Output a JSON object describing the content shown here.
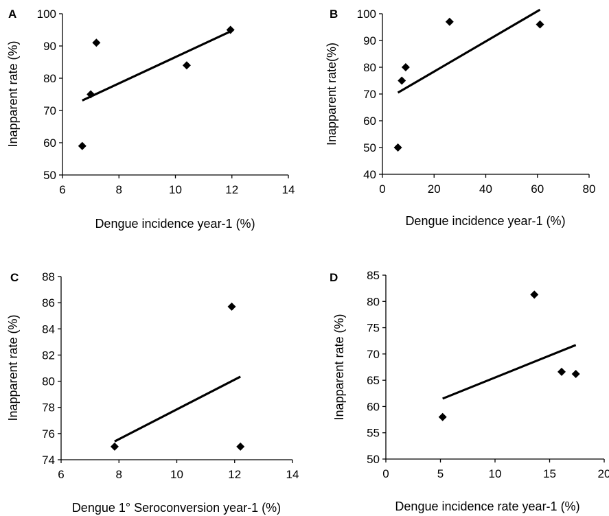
{
  "chart_data": [
    {
      "panel": "A",
      "type": "scatter",
      "xlabel": "Dengue incidence year-1 (%)",
      "ylabel": "Inapparent rate (%)",
      "xlim": [
        6,
        14
      ],
      "ylim": [
        50,
        100
      ],
      "xticks": [
        "6",
        "8",
        "10",
        "12",
        "14"
      ],
      "yticks": [
        "50",
        "60",
        "70",
        "80",
        "90",
        "100"
      ],
      "points": [
        {
          "x": 6.7,
          "y": 59
        },
        {
          "x": 7.0,
          "y": 75
        },
        {
          "x": 7.2,
          "y": 91
        },
        {
          "x": 10.4,
          "y": 84
        },
        {
          "x": 11.95,
          "y": 95
        }
      ],
      "trendline": {
        "x": [
          6.7,
          11.95
        ],
        "y": [
          73.1,
          94.5
        ]
      }
    },
    {
      "panel": "B",
      "type": "scatter",
      "xlabel": "Dengue incidence year-1 (%)",
      "ylabel": "Inapparent rate(%)",
      "xlim": [
        0,
        80
      ],
      "ylim": [
        40,
        100
      ],
      "xticks": [
        "0",
        "20",
        "40",
        "60",
        "80"
      ],
      "yticks": [
        "40",
        "50",
        "60",
        "70",
        "80",
        "90",
        "100"
      ],
      "points": [
        {
          "x": 6,
          "y": 50
        },
        {
          "x": 7.5,
          "y": 75
        },
        {
          "x": 9,
          "y": 80
        },
        {
          "x": 26,
          "y": 97
        },
        {
          "x": 61,
          "y": 96
        }
      ],
      "trendline": {
        "x": [
          6,
          61
        ],
        "y": [
          70.5,
          101.5
        ]
      }
    },
    {
      "panel": "C",
      "type": "scatter",
      "xlabel": "Dengue 1° Seroconversion year-1 (%)",
      "ylabel": "Inapparent rate (%)",
      "xlim": [
        6,
        14
      ],
      "ylim": [
        74,
        88
      ],
      "xticks": [
        "6",
        "8",
        "10",
        "12",
        "14"
      ],
      "yticks": [
        "74",
        "76",
        "78",
        "80",
        "82",
        "84",
        "86",
        "88"
      ],
      "points": [
        {
          "x": 7.85,
          "y": 75
        },
        {
          "x": 11.9,
          "y": 85.7
        },
        {
          "x": 12.2,
          "y": 75
        }
      ],
      "trendline": {
        "x": [
          7.85,
          12.2
        ],
        "y": [
          75.4,
          80.35
        ]
      }
    },
    {
      "panel": "D",
      "type": "scatter",
      "xlabel": "Dengue incidence rate year-1 (%)",
      "ylabel": "Inapparent rate (%)",
      "xlim": [
        0,
        20
      ],
      "ylim": [
        50,
        85
      ],
      "xticks": [
        "0",
        "5",
        "10",
        "15",
        "20"
      ],
      "yticks": [
        "50",
        "55",
        "60",
        "65",
        "70",
        "75",
        "80",
        "85"
      ],
      "points": [
        {
          "x": 5.2,
          "y": 58
        },
        {
          "x": 13.6,
          "y": 81.3
        },
        {
          "x": 16.1,
          "y": 66.6
        },
        {
          "x": 17.4,
          "y": 66.2
        }
      ],
      "trendline": {
        "x": [
          5.2,
          17.4
        ],
        "y": [
          61.5,
          71.7
        ]
      }
    }
  ]
}
